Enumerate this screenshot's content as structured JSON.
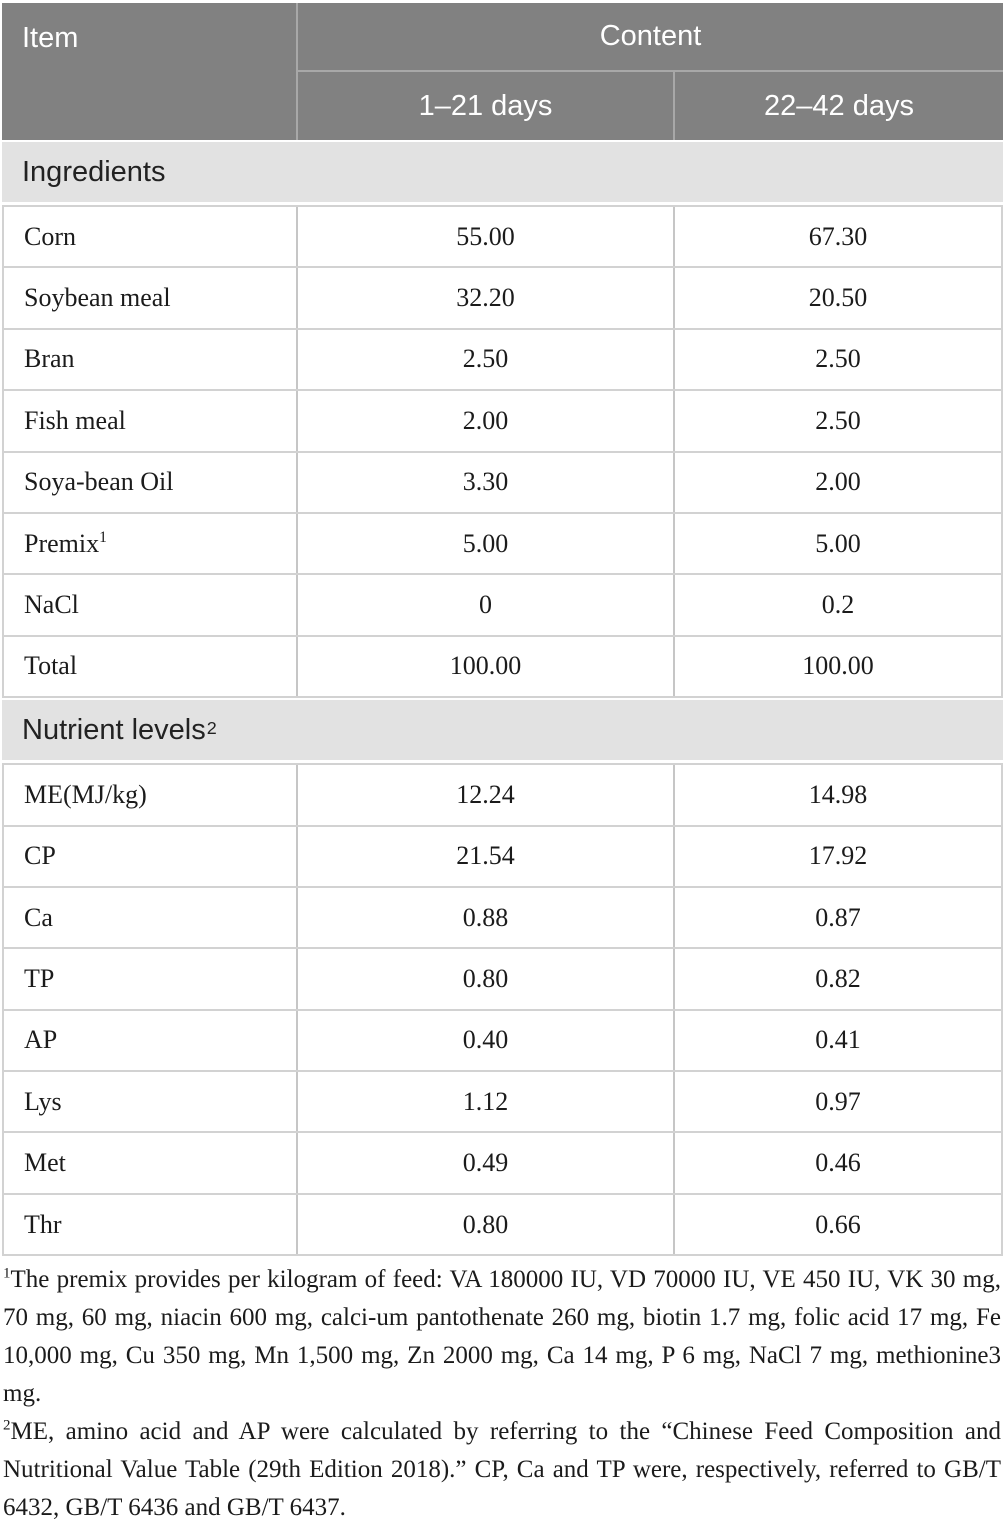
{
  "table": {
    "header": {
      "item": "Item",
      "content": "Content",
      "sub1": "1–21 days",
      "sub2": "22–42 days"
    },
    "sections": [
      {
        "title": "Ingredients",
        "title_sup": "",
        "rows": [
          {
            "item": "Corn",
            "sup": "",
            "v1": "55.00",
            "v2": "67.30"
          },
          {
            "item": "Soybean meal",
            "sup": "",
            "v1": "32.20",
            "v2": "20.50"
          },
          {
            "item": "Bran",
            "sup": "",
            "v1": "2.50",
            "v2": "2.50"
          },
          {
            "item": "Fish meal",
            "sup": "",
            "v1": "2.00",
            "v2": "2.50"
          },
          {
            "item": "Soya-bean Oil",
            "sup": "",
            "v1": "3.30",
            "v2": "2.00"
          },
          {
            "item": "Premix",
            "sup": "1",
            "v1": "5.00",
            "v2": "5.00"
          },
          {
            "item": "NaCl",
            "sup": "",
            "v1": "0",
            "v2": "0.2"
          },
          {
            "item": "Total",
            "sup": "",
            "v1": "100.00",
            "v2": "100.00"
          }
        ]
      },
      {
        "title": "Nutrient levels",
        "title_sup": "2",
        "rows": [
          {
            "item": "ME(MJ/kg)",
            "sup": "",
            "v1": "12.24",
            "v2": "14.98"
          },
          {
            "item": "CP",
            "sup": "",
            "v1": "21.54",
            "v2": "17.92"
          },
          {
            "item": "Ca",
            "sup": "",
            "v1": "0.88",
            "v2": "0.87"
          },
          {
            "item": "TP",
            "sup": "",
            "v1": "0.80",
            "v2": "0.82"
          },
          {
            "item": "AP",
            "sup": "",
            "v1": "0.40",
            "v2": "0.41"
          },
          {
            "item": "Lys",
            "sup": "",
            "v1": "1.12",
            "v2": "0.97"
          },
          {
            "item": "Met",
            "sup": "",
            "v1": "0.49",
            "v2": "0.46"
          },
          {
            "item": "Thr",
            "sup": "",
            "v1": "0.80",
            "v2": "0.66"
          }
        ]
      }
    ],
    "footnotes": [
      {
        "sup": "1",
        "text": "The premix provides per kilogram of feed: VA 180000 IU, VD 70000 IU, VE 450 IU, VK 30 mg, 70 mg, 60 mg, niacin 600 mg, calci-um pantothenate 260 mg, biotin 1.7 mg, folic acid 17 mg, Fe 10,000 mg, Cu 350 mg, Mn 1,500 mg, Zn 2000 mg, Ca 14 mg, P 6 mg, NaCl 7 mg, methionine3 mg."
      },
      {
        "sup": "2",
        "text": "ME, amino acid and AP were calculated by referring to the “Chinese Feed Composition and Nutritional Value Table (29th Edition 2018).” CP, Ca and TP were, respectively, referred to GB/T 6432, GB/T 6436 and GB/T 6437."
      }
    ],
    "colors": {
      "header_bg": "#818181",
      "header_text": "#ffffff",
      "section_bg": "#e2e2e2",
      "row_border": "#d2d2d2",
      "column_border": "#c6c6c6"
    }
  }
}
